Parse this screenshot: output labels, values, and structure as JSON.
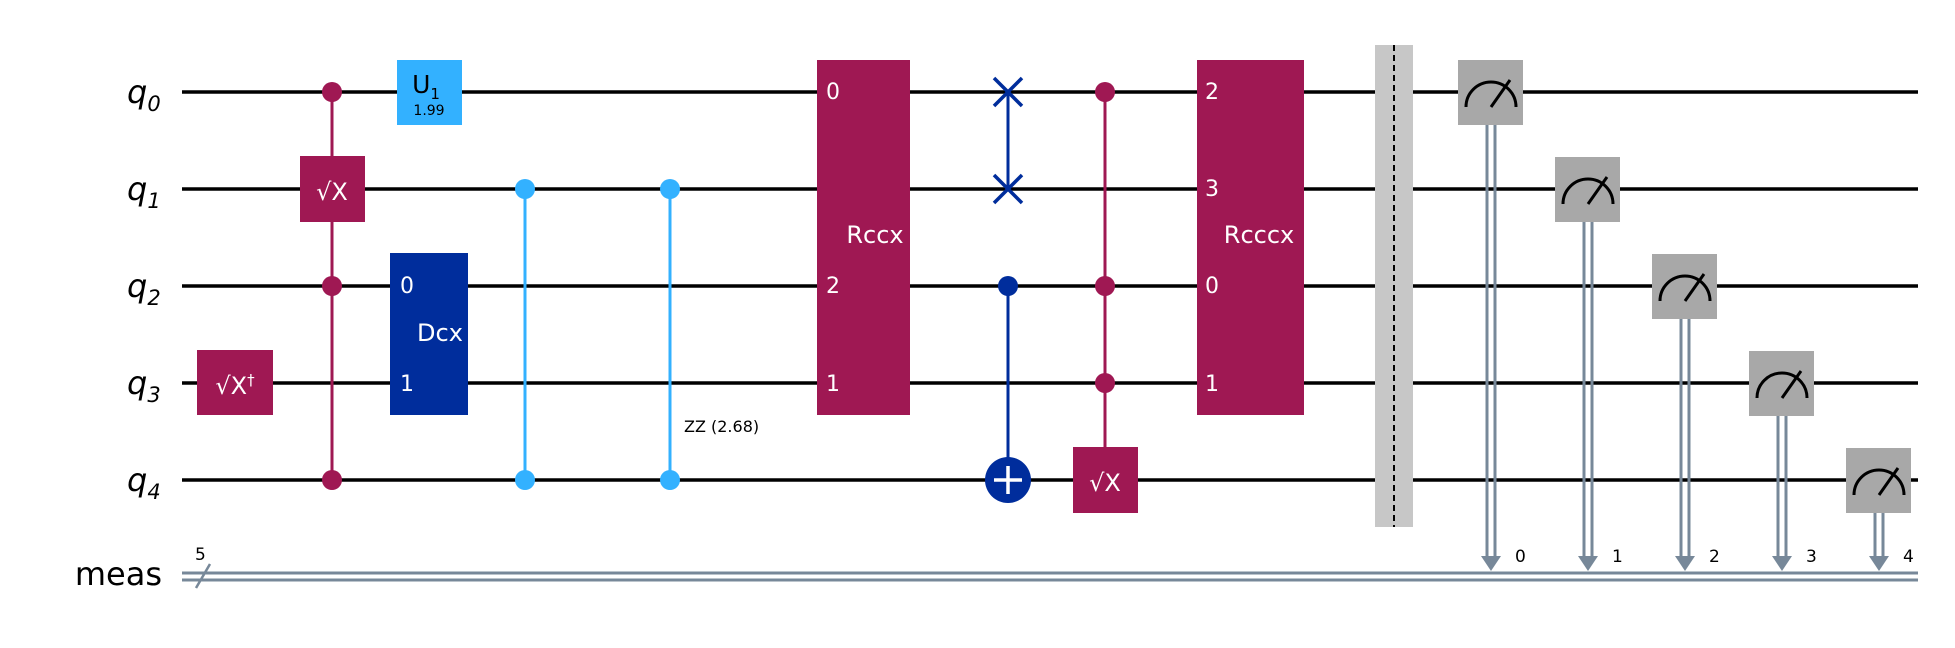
{
  "colors": {
    "wire": "#000000",
    "classical": "#778899",
    "magenta_gate": "#9f1853",
    "light_blue_gate": "#33b1ff",
    "dark_blue_gate": "#002d9c",
    "measure_gate": "#a8a8a8",
    "barrier": "#c7c7c7"
  },
  "qubits": [
    {
      "letter": "q",
      "index": "0"
    },
    {
      "letter": "q",
      "index": "1"
    },
    {
      "letter": "q",
      "index": "2"
    },
    {
      "letter": "q",
      "index": "3"
    },
    {
      "letter": "q",
      "index": "4"
    }
  ],
  "classical_register": {
    "name": "meas",
    "width": "5",
    "bits": [
      "0",
      "1",
      "2",
      "3",
      "4"
    ]
  },
  "gates": {
    "sxdg": {
      "label": "√X",
      "dagger": "†"
    },
    "csx": {
      "label": "√X"
    },
    "u1": {
      "label": "U",
      "sub": "1",
      "param": "1.99"
    },
    "dcx": {
      "label": "Dcx",
      "ports": [
        "0",
        "1"
      ]
    },
    "rzz": {
      "label": "ZZ (2.68)"
    },
    "rccx": {
      "label": "Rccx",
      "ports": [
        "0",
        "2",
        "1"
      ]
    },
    "rcccx": {
      "label": "Rcccx",
      "ports": [
        "2",
        "3",
        "0",
        "1"
      ]
    },
    "mcsx": {
      "label": "√X"
    }
  }
}
